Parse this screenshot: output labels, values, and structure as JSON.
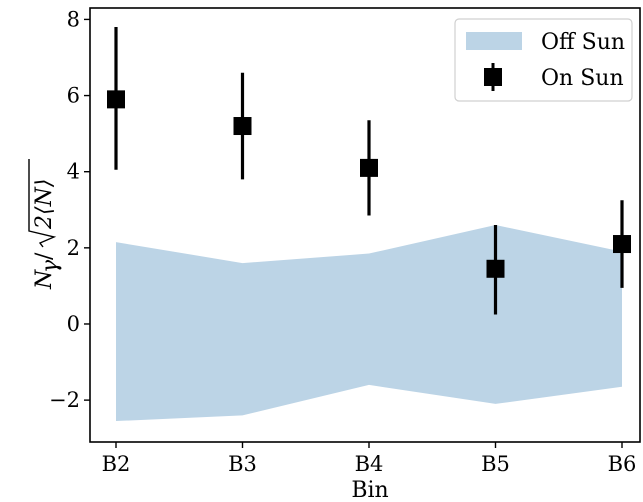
{
  "chart_data": {
    "type": "scatter",
    "xlabel": "Bin",
    "ylabel": "N_γ / √(2⟨N⟩)",
    "ylabel_parts": {
      "numerator": "N",
      "numerator_sub": "γ",
      "slash": "/",
      "radicand": "2⟨N⟩"
    },
    "categories": [
      "B2",
      "B3",
      "B4",
      "B5",
      "B6"
    ],
    "ylim": [
      -3.1,
      8.3
    ],
    "yticks": [
      -2,
      0,
      2,
      4,
      6,
      8
    ],
    "ytick_labels": [
      "−2",
      "0",
      "2",
      "4",
      "6",
      "8"
    ],
    "grid": false,
    "legend_position": "top-right",
    "series": [
      {
        "name": "Off Sun",
        "kind": "band",
        "color": "#bcd4e6",
        "lower": [
          -2.55,
          -2.4,
          -1.6,
          -2.1,
          -1.65
        ],
        "upper": [
          2.15,
          1.6,
          1.85,
          2.6,
          1.9
        ]
      },
      {
        "name": "On Sun",
        "kind": "errorbar",
        "color": "#000000",
        "values": [
          5.9,
          5.2,
          4.1,
          1.45,
          2.1
        ],
        "err_low": [
          1.85,
          1.4,
          1.25,
          1.2,
          1.15
        ],
        "err_high": [
          1.9,
          1.4,
          1.25,
          1.15,
          1.15
        ]
      }
    ]
  }
}
